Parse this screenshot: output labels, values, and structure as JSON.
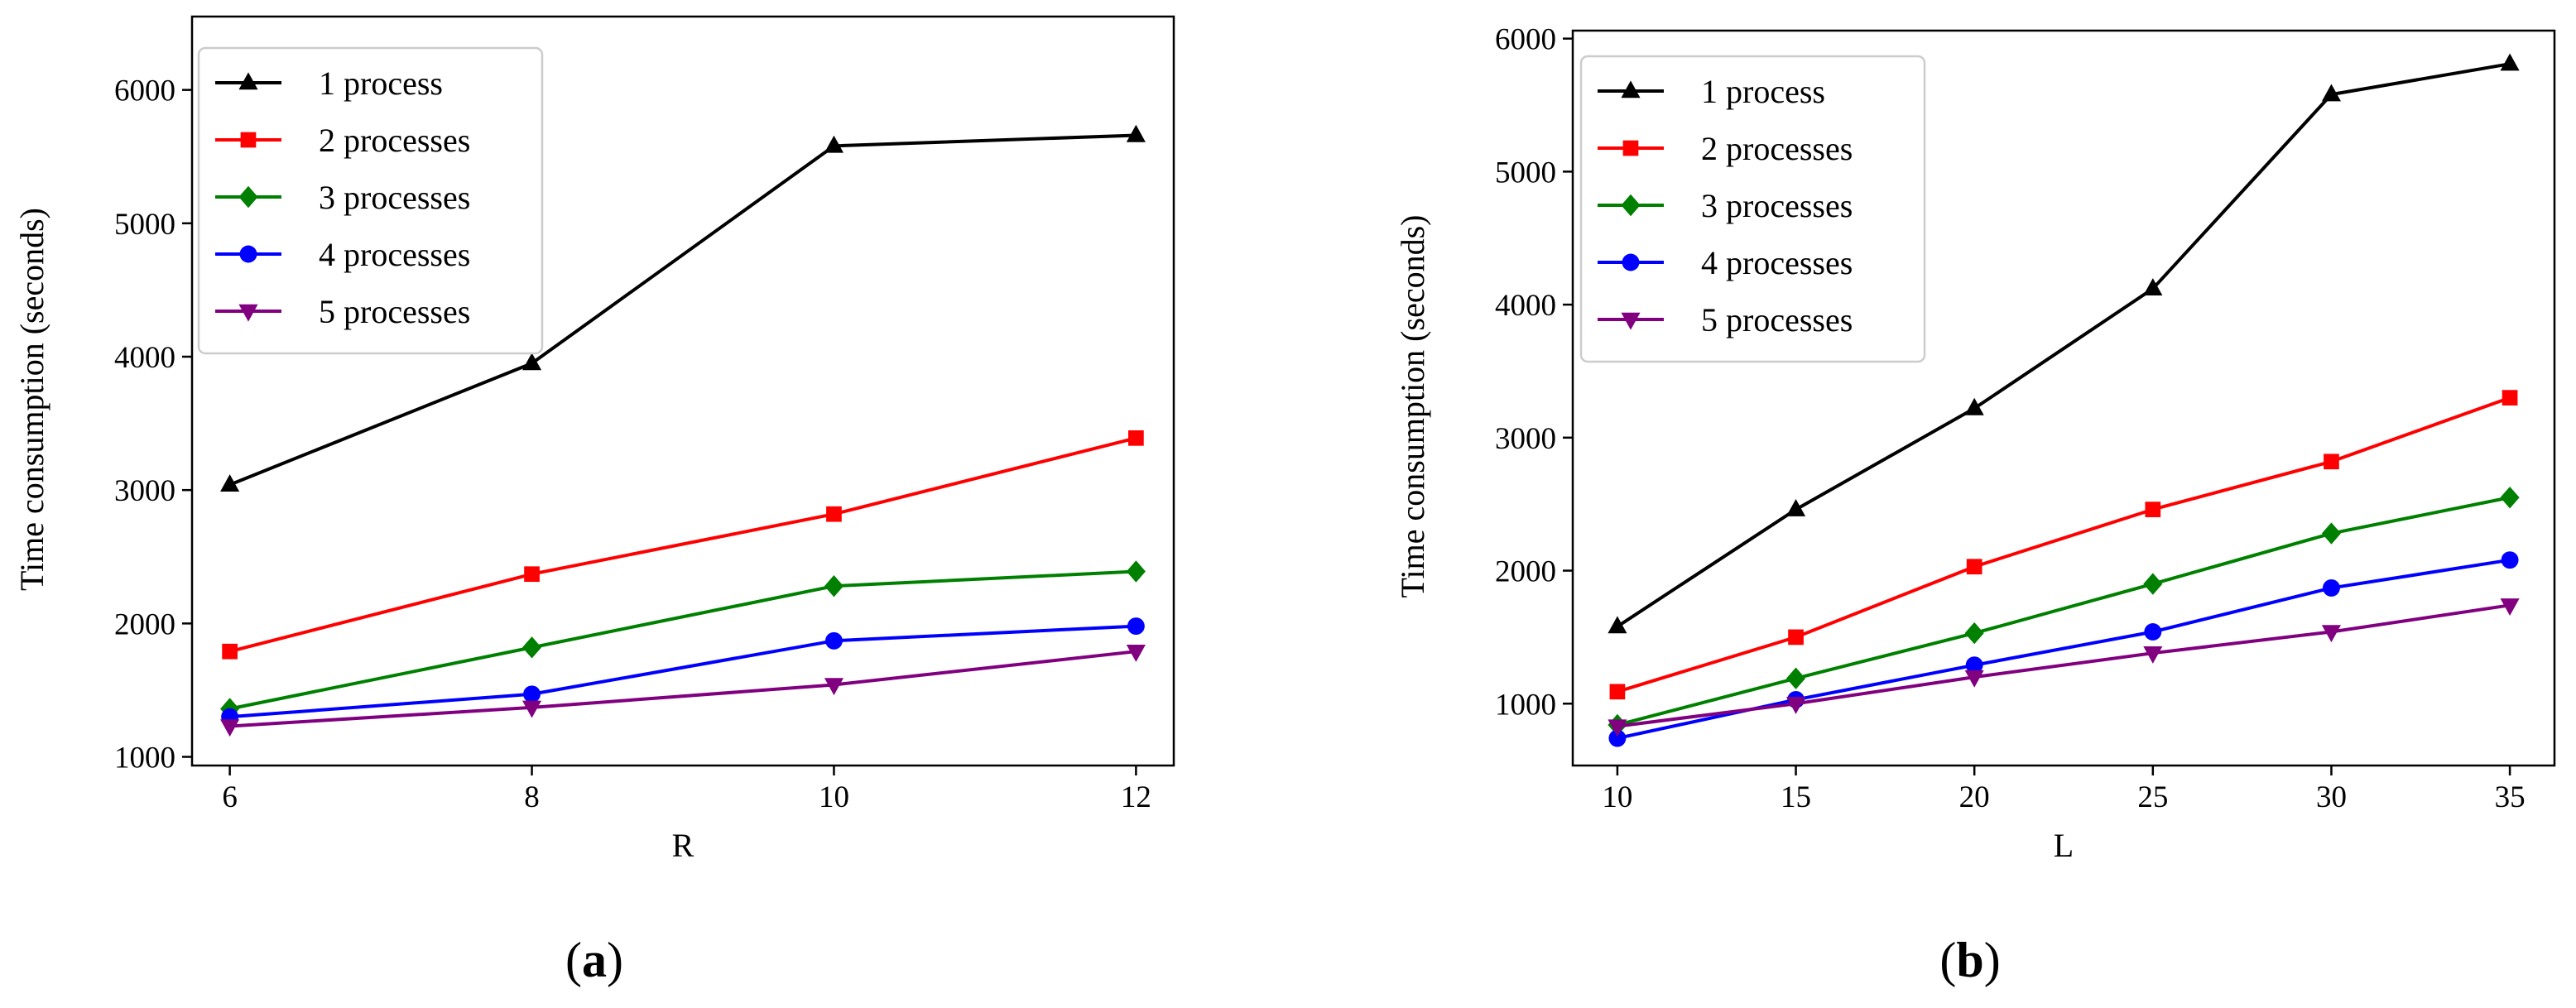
{
  "chart_data": [
    {
      "type": "line",
      "panel_label": "a",
      "xlabel": "R",
      "ylabel": "Time consumption (seconds)",
      "x": [
        6,
        8,
        10,
        12
      ],
      "xlim": [
        5.75,
        12.25
      ],
      "ylim": [
        935,
        6550
      ],
      "xticks": [
        6,
        8,
        10,
        12
      ],
      "yticks": [
        1000,
        2000,
        3000,
        4000,
        5000,
        6000
      ],
      "legend_position": "top-left",
      "series": [
        {
          "name": "1 process",
          "color": "#000000",
          "marker": "triangle-up",
          "values": [
            3040,
            3950,
            5580,
            5660
          ]
        },
        {
          "name": "2 processes",
          "color": "#ff0000",
          "marker": "square",
          "values": [
            1790,
            2370,
            2820,
            3390
          ]
        },
        {
          "name": "3 processes",
          "color": "#008000",
          "marker": "diamond",
          "values": [
            1360,
            1820,
            2280,
            2390
          ]
        },
        {
          "name": "4 processes",
          "color": "#0000ff",
          "marker": "circle",
          "values": [
            1300,
            1470,
            1870,
            1980
          ]
        },
        {
          "name": "5 processes",
          "color": "#800080",
          "marker": "triangle-down",
          "values": [
            1230,
            1370,
            1540,
            1790
          ]
        }
      ]
    },
    {
      "type": "line",
      "panel_label": "b",
      "xlabel": "L",
      "ylabel": "Time consumption (seconds)",
      "x": [
        10,
        15,
        20,
        25,
        30,
        35
      ],
      "xlim": [
        8.75,
        36.25
      ],
      "ylim": [
        535,
        6060
      ],
      "xticks": [
        10,
        15,
        20,
        25,
        30,
        35
      ],
      "yticks": [
        1000,
        2000,
        3000,
        4000,
        5000,
        6000
      ],
      "legend_position": "top-left",
      "series": [
        {
          "name": "1 process",
          "color": "#000000",
          "marker": "triangle-up",
          "values": [
            1580,
            2460,
            3220,
            4120,
            5580,
            5810
          ]
        },
        {
          "name": "2 processes",
          "color": "#ff0000",
          "marker": "square",
          "values": [
            1090,
            1500,
            2030,
            2460,
            2820,
            3300
          ]
        },
        {
          "name": "3 processes",
          "color": "#008000",
          "marker": "diamond",
          "values": [
            840,
            1190,
            1530,
            1900,
            2280,
            2550
          ]
        },
        {
          "name": "4 processes",
          "color": "#0000ff",
          "marker": "circle",
          "values": [
            740,
            1030,
            1290,
            1540,
            1870,
            2080
          ]
        },
        {
          "name": "5 processes",
          "color": "#800080",
          "marker": "triangle-down",
          "values": [
            830,
            1000,
            1200,
            1380,
            1540,
            1740
          ]
        }
      ]
    }
  ]
}
